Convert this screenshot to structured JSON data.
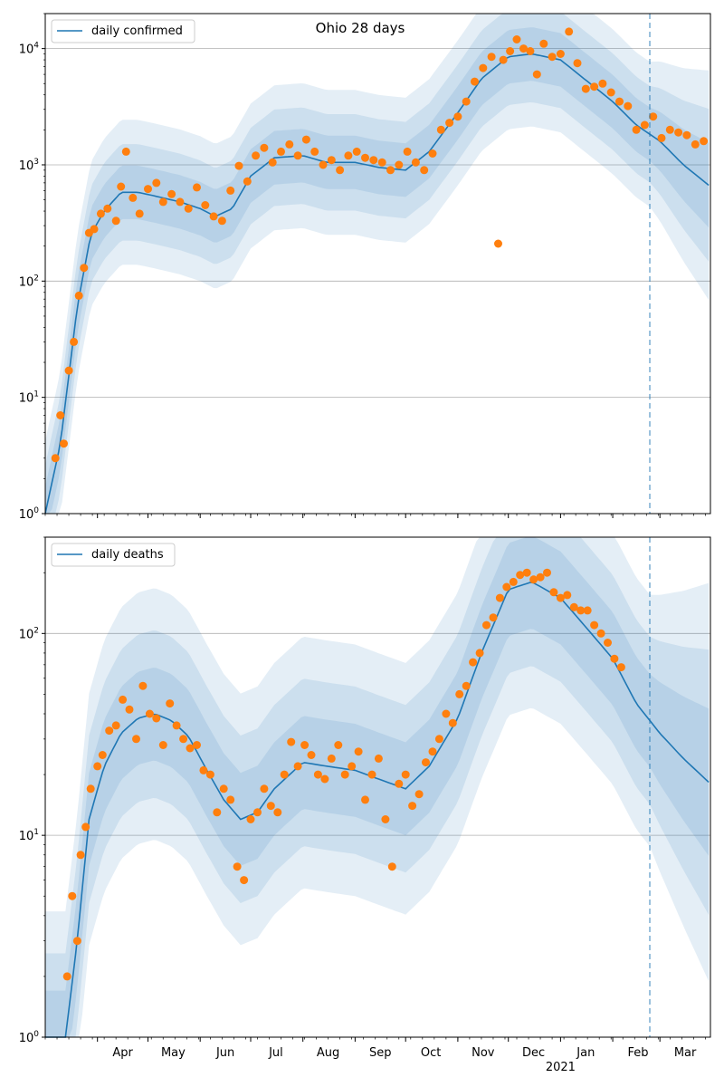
{
  "chart_data": [
    {
      "type": "line",
      "title": "Ohio 28 days",
      "yscale": "log",
      "ylim": [
        1,
        20000
      ],
      "xlim": [
        "2020-03-01",
        "2021-03-31"
      ],
      "grid": "horizontal",
      "legend": {
        "placement": "top-left",
        "entries": [
          "daily confirmed"
        ]
      },
      "y_ticks": [
        {
          "value": 1,
          "base": "10",
          "exp": "0"
        },
        {
          "value": 10,
          "base": "10",
          "exp": "1"
        },
        {
          "value": 100,
          "base": "10",
          "exp": "2"
        },
        {
          "value": 1000,
          "base": "10",
          "exp": "3"
        },
        {
          "value": 10000,
          "base": "10",
          "exp": "4"
        }
      ],
      "forecast_start": "2021-02-23",
      "colors": {
        "line": "#1f77b4",
        "points": "#ff7f0e",
        "band": "#1f77b4"
      },
      "series": [
        {
          "name": "daily confirmed",
          "kind": "model",
          "x": [
            "2020-03-01",
            "2020-03-10",
            "2020-03-20",
            "2020-03-28",
            "2020-04-05",
            "2020-04-15",
            "2020-04-25",
            "2020-05-05",
            "2020-05-20",
            "2020-06-01",
            "2020-06-10",
            "2020-06-20",
            "2020-07-01",
            "2020-07-15",
            "2020-08-01",
            "2020-08-15",
            "2020-09-01",
            "2020-09-15",
            "2020-10-01",
            "2020-10-15",
            "2020-11-01",
            "2020-11-15",
            "2020-12-01",
            "2020-12-15",
            "2021-01-01",
            "2021-01-15",
            "2021-02-01",
            "2021-02-15",
            "2021-03-01",
            "2021-03-15",
            "2021-03-31"
          ],
          "y": [
            1,
            4,
            60,
            250,
            400,
            580,
            580,
            540,
            480,
            420,
            360,
            420,
            800,
            1150,
            1200,
            1050,
            1050,
            950,
            900,
            1300,
            2800,
            5500,
            8500,
            9000,
            8000,
            5500,
            3500,
            2200,
            1600,
            1000,
            650
          ]
        },
        {
          "name": "",
          "kind": "observed",
          "x": [
            "2020-03-07",
            "2020-03-10",
            "2020-03-12",
            "2020-03-15",
            "2020-03-18",
            "2020-03-21",
            "2020-03-24",
            "2020-03-27",
            "2020-03-30",
            "2020-04-03",
            "2020-04-07",
            "2020-04-12",
            "2020-04-15",
            "2020-04-18",
            "2020-04-22",
            "2020-04-26",
            "2020-05-01",
            "2020-05-06",
            "2020-05-10",
            "2020-05-15",
            "2020-05-20",
            "2020-05-25",
            "2020-05-30",
            "2020-06-04",
            "2020-06-09",
            "2020-06-14",
            "2020-06-19",
            "2020-06-24",
            "2020-06-29",
            "2020-07-04",
            "2020-07-09",
            "2020-07-14",
            "2020-07-19",
            "2020-07-24",
            "2020-07-29",
            "2020-08-03",
            "2020-08-08",
            "2020-08-13",
            "2020-08-18",
            "2020-08-23",
            "2020-08-28",
            "2020-09-02",
            "2020-09-07",
            "2020-09-12",
            "2020-09-17",
            "2020-09-22",
            "2020-09-27",
            "2020-10-02",
            "2020-10-07",
            "2020-10-12",
            "2020-10-17",
            "2020-10-22",
            "2020-10-27",
            "2020-11-01",
            "2020-11-06",
            "2020-11-11",
            "2020-11-16",
            "2020-11-21",
            "2020-11-25",
            "2020-11-28",
            "2020-12-02",
            "2020-12-06",
            "2020-12-10",
            "2020-12-14",
            "2020-12-18",
            "2020-12-22",
            "2020-12-27",
            "2021-01-01",
            "2021-01-06",
            "2021-01-11",
            "2021-01-16",
            "2021-01-21",
            "2021-01-26",
            "2021-01-31",
            "2021-02-05",
            "2021-02-10",
            "2021-02-15",
            "2021-02-20",
            "2021-02-25",
            "2021-03-02",
            "2021-03-07",
            "2021-03-12",
            "2021-03-17",
            "2021-03-22",
            "2021-03-27"
          ],
          "y": [
            3,
            7,
            4,
            17,
            30,
            75,
            130,
            260,
            280,
            380,
            420,
            330,
            650,
            1300,
            520,
            380,
            620,
            700,
            480,
            560,
            480,
            420,
            640,
            450,
            360,
            330,
            600,
            980,
            720,
            1200,
            1400,
            1050,
            1300,
            1500,
            1200,
            1650,
            1300,
            1000,
            1100,
            900,
            1200,
            1300,
            1150,
            1100,
            1050,
            900,
            1000,
            1300,
            1050,
            900,
            1250,
            2000,
            2300,
            2600,
            3500,
            5200,
            6800,
            8500,
            210,
            8000,
            9500,
            12000,
            10000,
            9500,
            6000,
            11000,
            8500,
            9000,
            14000,
            7500,
            4500,
            4700,
            5000,
            4200,
            3500,
            3200,
            2000,
            2200,
            2600,
            1700,
            2000,
            1900,
            1800,
            1500,
            1600
          ]
        }
      ]
    },
    {
      "type": "line",
      "title": "",
      "yscale": "log",
      "ylim": [
        1,
        300
      ],
      "xlim": [
        "2020-03-01",
        "2021-03-31"
      ],
      "grid": "horizontal",
      "legend": {
        "placement": "top-left",
        "entries": [
          "daily deaths"
        ]
      },
      "y_ticks": [
        {
          "value": 1,
          "base": "10",
          "exp": "0"
        },
        {
          "value": 10,
          "base": "10",
          "exp": "1"
        },
        {
          "value": 100,
          "base": "10",
          "exp": "2"
        }
      ],
      "x_ticks": [
        {
          "date": "2020-04-01",
          "label": "Apr",
          "sublabel": ""
        },
        {
          "date": "2020-05-01",
          "label": "May",
          "sublabel": ""
        },
        {
          "date": "2020-06-01",
          "label": "Jun",
          "sublabel": ""
        },
        {
          "date": "2020-07-01",
          "label": "Jul",
          "sublabel": ""
        },
        {
          "date": "2020-08-01",
          "label": "Aug",
          "sublabel": ""
        },
        {
          "date": "2020-09-01",
          "label": "Sep",
          "sublabel": ""
        },
        {
          "date": "2020-10-01",
          "label": "Oct",
          "sublabel": ""
        },
        {
          "date": "2020-11-01",
          "label": "Nov",
          "sublabel": ""
        },
        {
          "date": "2020-12-01",
          "label": "Dec",
          "sublabel": ""
        },
        {
          "date": "2021-01-01",
          "label": "Jan",
          "sublabel": "2021"
        },
        {
          "date": "2021-02-01",
          "label": "Feb",
          "sublabel": ""
        },
        {
          "date": "2021-03-01",
          "label": "Mar",
          "sublabel": ""
        }
      ],
      "forecast_start": "2021-02-23",
      "colors": {
        "line": "#1f77b4",
        "points": "#ff7f0e",
        "band": "#1f77b4"
      },
      "series": [
        {
          "name": "daily deaths",
          "kind": "model",
          "x": [
            "2020-03-01",
            "2020-03-13",
            "2020-03-20",
            "2020-03-27",
            "2020-04-05",
            "2020-04-15",
            "2020-04-25",
            "2020-05-05",
            "2020-05-15",
            "2020-05-25",
            "2020-06-05",
            "2020-06-15",
            "2020-06-25",
            "2020-07-05",
            "2020-07-15",
            "2020-08-01",
            "2020-08-15",
            "2020-09-01",
            "2020-09-15",
            "2020-10-01",
            "2020-10-15",
            "2020-11-01",
            "2020-11-15",
            "2020-12-01",
            "2020-12-15",
            "2021-01-01",
            "2021-01-15",
            "2021-02-01",
            "2021-02-15",
            "2021-03-01",
            "2021-03-15",
            "2021-03-31"
          ],
          "y": [
            1,
            1,
            3,
            12,
            22,
            32,
            38,
            40,
            37,
            31,
            21,
            15,
            12,
            13,
            17,
            23,
            22,
            21,
            19,
            17,
            22,
            38,
            80,
            165,
            180,
            150,
            110,
            75,
            45,
            32,
            24,
            18
          ]
        },
        {
          "name": "",
          "kind": "observed",
          "x": [
            "2020-03-14",
            "2020-03-17",
            "2020-03-20",
            "2020-03-22",
            "2020-03-25",
            "2020-03-28",
            "2020-04-01",
            "2020-04-04",
            "2020-04-08",
            "2020-04-12",
            "2020-04-16",
            "2020-04-20",
            "2020-04-24",
            "2020-04-28",
            "2020-05-02",
            "2020-05-06",
            "2020-05-10",
            "2020-05-14",
            "2020-05-18",
            "2020-05-22",
            "2020-05-26",
            "2020-05-30",
            "2020-06-03",
            "2020-06-07",
            "2020-06-11",
            "2020-06-15",
            "2020-06-19",
            "2020-06-23",
            "2020-06-27",
            "2020-07-01",
            "2020-07-05",
            "2020-07-09",
            "2020-07-13",
            "2020-07-17",
            "2020-07-21",
            "2020-07-25",
            "2020-07-29",
            "2020-08-02",
            "2020-08-06",
            "2020-08-10",
            "2020-08-14",
            "2020-08-18",
            "2020-08-22",
            "2020-08-26",
            "2020-08-30",
            "2020-09-03",
            "2020-09-07",
            "2020-09-11",
            "2020-09-15",
            "2020-09-19",
            "2020-09-23",
            "2020-09-27",
            "2020-10-01",
            "2020-10-05",
            "2020-10-09",
            "2020-10-13",
            "2020-10-17",
            "2020-10-21",
            "2020-10-25",
            "2020-10-29",
            "2020-11-02",
            "2020-11-06",
            "2020-11-10",
            "2020-11-14",
            "2020-11-18",
            "2020-11-22",
            "2020-11-26",
            "2020-11-30",
            "2020-12-04",
            "2020-12-08",
            "2020-12-12",
            "2020-12-16",
            "2020-12-20",
            "2020-12-24",
            "2020-12-28",
            "2021-01-01",
            "2021-01-05",
            "2021-01-09",
            "2021-01-13",
            "2021-01-17",
            "2021-01-21",
            "2021-01-25",
            "2021-01-29",
            "2021-02-02",
            "2021-02-06"
          ],
          "y": [
            2,
            5,
            3,
            8,
            11,
            17,
            22,
            25,
            33,
            35,
            47,
            42,
            30,
            55,
            40,
            38,
            28,
            45,
            35,
            30,
            27,
            28,
            21,
            20,
            13,
            17,
            15,
            7,
            6,
            12,
            13,
            17,
            14,
            13,
            20,
            29,
            22,
            28,
            25,
            20,
            19,
            24,
            28,
            20,
            22,
            26,
            15,
            20,
            24,
            12,
            7,
            18,
            20,
            14,
            16,
            23,
            26,
            30,
            40,
            36,
            50,
            55,
            72,
            80,
            110,
            120,
            150,
            170,
            180,
            195,
            200,
            185,
            190,
            200,
            160,
            150,
            155,
            135,
            130,
            130,
            110,
            100,
            90,
            75,
            68
          ]
        }
      ]
    }
  ]
}
